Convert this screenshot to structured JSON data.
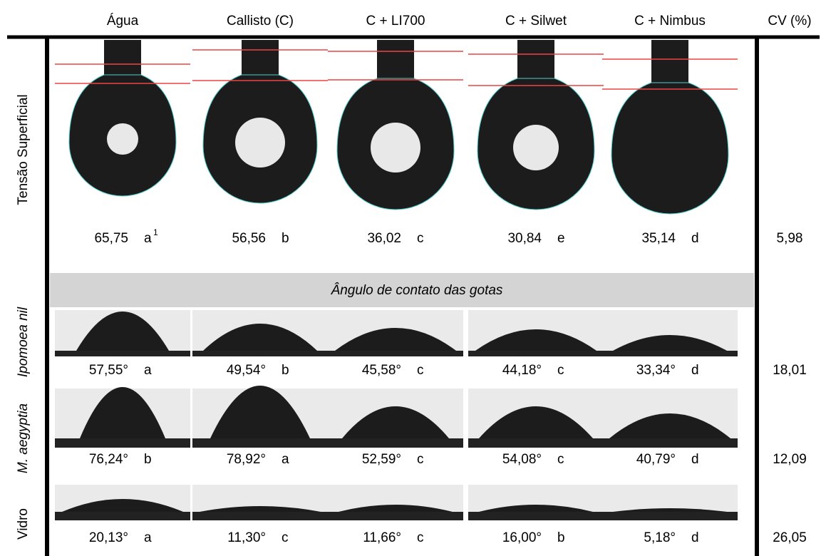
{
  "header": {
    "columns": [
      "Água",
      "Callisto (C)",
      "C + LI700",
      "C + Silwet",
      "C + Nimbus"
    ],
    "cv": "CV (%)"
  },
  "surface_tension": {
    "label": "Tensão Superficial",
    "values": [
      "65,75",
      "56,56",
      "36,02",
      "30,84",
      "35,14"
    ],
    "letters": [
      "a",
      "b",
      "c",
      "e",
      "d"
    ],
    "footnote": "1",
    "cv": "5,98"
  },
  "section_title": "Ângulo de contato das gotas",
  "contact_angle": {
    "rows": [
      {
        "label": "Ipomoea nil",
        "values": [
          "57,55°",
          "49,54°",
          "45,58°",
          "44,18°",
          "33,34°"
        ],
        "letters": [
          "a",
          "b",
          "c",
          "c",
          "d"
        ],
        "cv": "18,01"
      },
      {
        "label": "M. aegyptia",
        "values": [
          "76,24°",
          "78,92°",
          "52,59°",
          "54,08°",
          "40,79°"
        ],
        "letters": [
          "b",
          "a",
          "c",
          "c",
          "d"
        ],
        "cv": "12,09"
      },
      {
        "label": "Vidro",
        "values": [
          "20,13°",
          "11,30°",
          "11,66°",
          "16,00°",
          "5,18°"
        ],
        "letters": [
          "a",
          "c",
          "c",
          "b",
          "d"
        ],
        "cv": "26,05"
      }
    ]
  }
}
